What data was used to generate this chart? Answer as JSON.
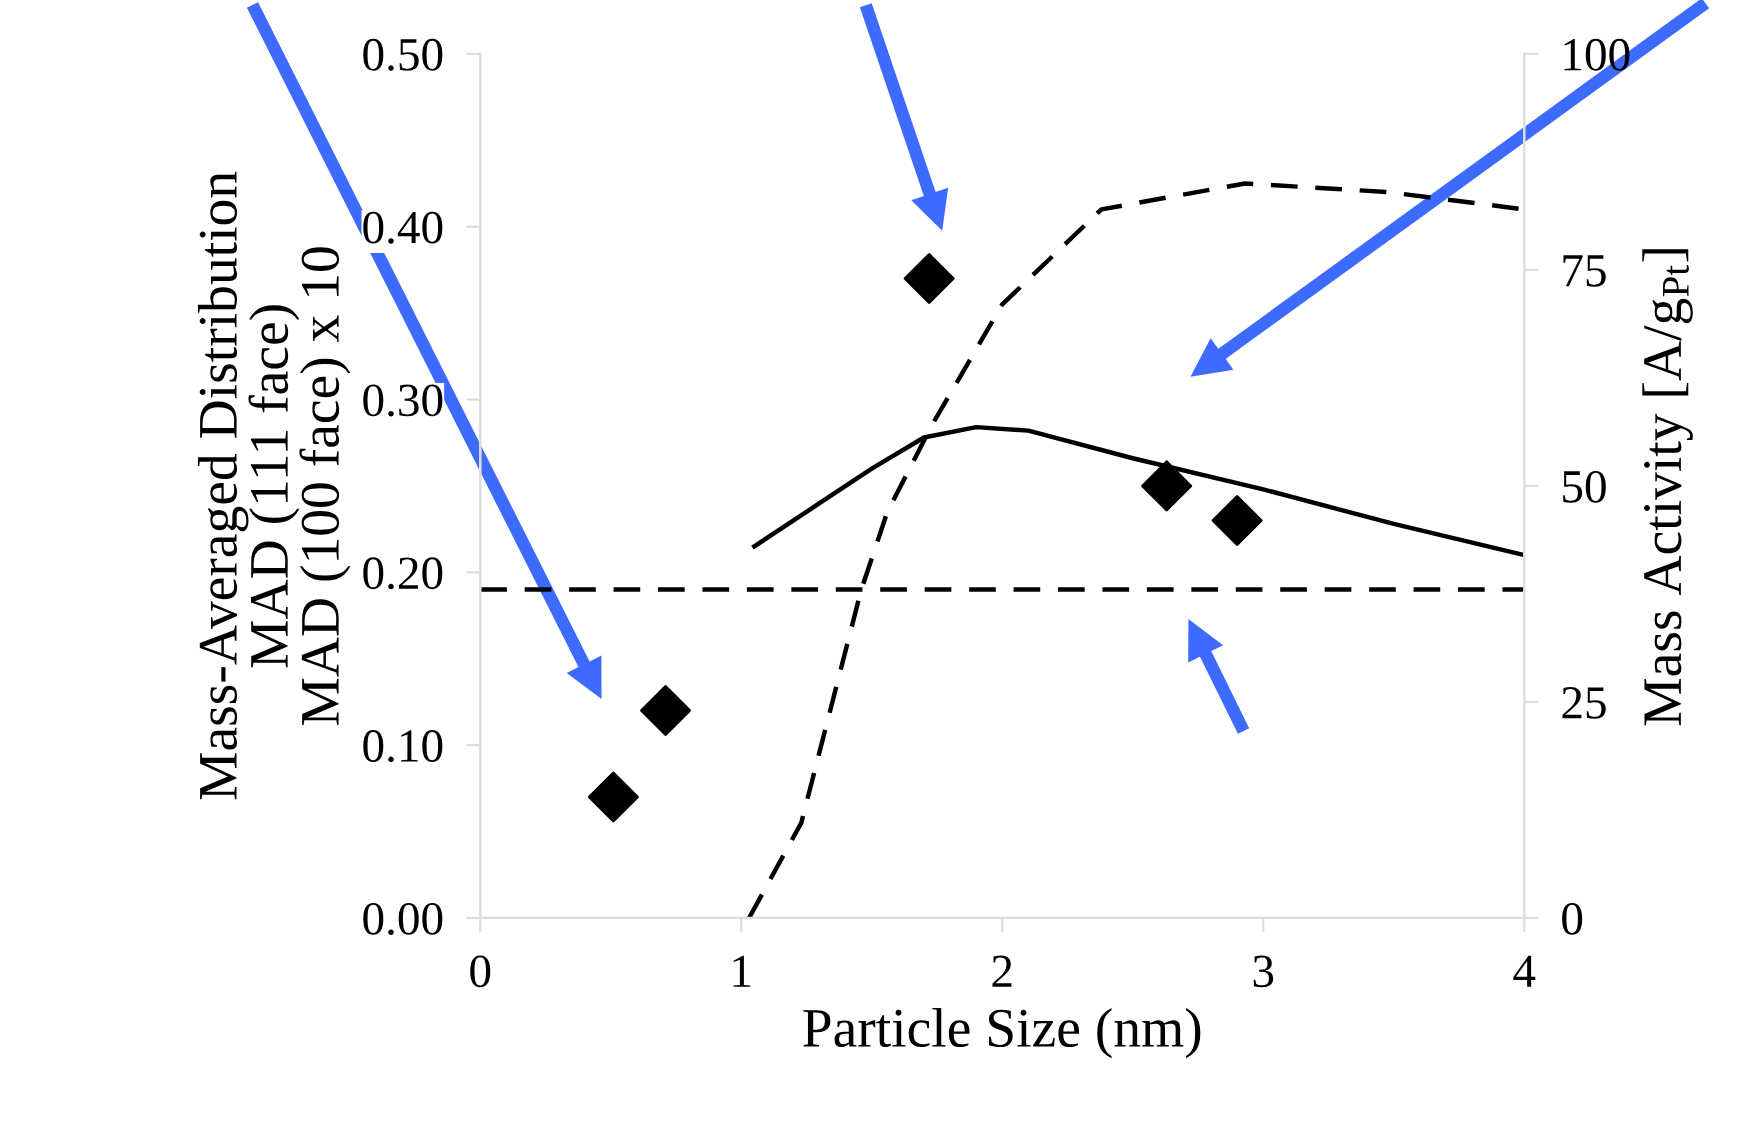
{
  "chart_data": {
    "type": "scatter",
    "xlabel": "Particle Size (nm)",
    "ylabel": "Mass-Averaged Distribution\nMAD (111 face)\nMAD (100 face) x 10",
    "y2label": "Mass Activity [A/g$_{Pt}$]",
    "xlim": [
      0,
      4
    ],
    "xticks": [
      0,
      1,
      2,
      3,
      4
    ],
    "ylim": [
      0,
      0.5
    ],
    "yticks": [
      {
        "value": 0,
        "label": "0.00"
      },
      {
        "value": 0.1,
        "label": "0.10"
      },
      {
        "value": 0.2,
        "label": "0.20"
      },
      {
        "value": 0.3,
        "label": "0.30"
      },
      {
        "value": 0.4,
        "label": "0.40"
      },
      {
        "value": 0.5,
        "label": "0.50"
      }
    ],
    "y2lim": [
      0,
      100
    ],
    "y2ticks": [
      0,
      25,
      50,
      75,
      100
    ],
    "grid": false,
    "legend": false,
    "series": [
      {
        "color": "#000000",
        "marker": "diamond",
        "x": [
          0.51,
          0.71,
          1.72,
          2.63,
          2.9
        ],
        "values": [
          0.07,
          0.12,
          0.37,
          0.25,
          0.23
        ]
      },
      {
        "type": "line",
        "color": "#000000",
        "marker": "none",
        "line_style": "solid",
        "x": [
          1.05,
          1.3,
          1.5,
          1.7,
          1.9,
          2.1,
          2.5,
          3.0,
          3.5,
          4.0
        ],
        "values": [
          0.215,
          0.24,
          0.26,
          0.278,
          0.284,
          0.282,
          0.266,
          0.248,
          0.228,
          0.21
        ]
      },
      {
        "type": "line",
        "color": "#000000",
        "marker": "none",
        "line_style": "dashed",
        "axis": "y2",
        "x": [
          1.03,
          1.23,
          1.46,
          1.56,
          1.73,
          2.0,
          2.38,
          2.93,
          3.48,
          4.0
        ],
        "values": [
          0,
          11,
          38,
          47,
          57,
          71,
          82,
          85,
          84,
          82
        ]
      }
    ],
    "ref_lines": [
      {
        "axis": "y",
        "value": 0.19,
        "color": "#000000",
        "line_style": "dashed"
      }
    ]
  }
}
